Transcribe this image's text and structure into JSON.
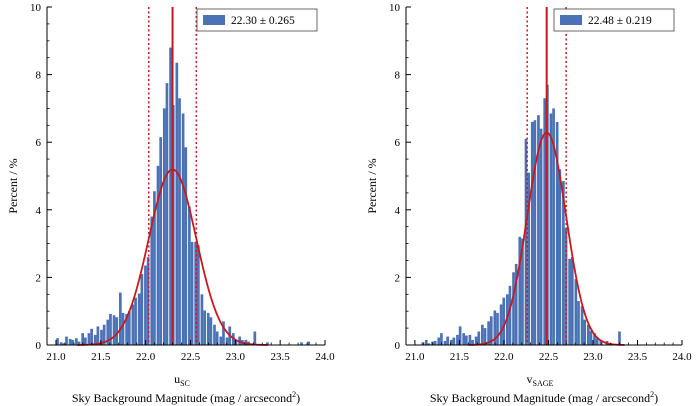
{
  "chart_data": [
    {
      "type": "bar",
      "panel": "left",
      "xlim": [
        20.9,
        24.0
      ],
      "ylim": [
        0,
        10
      ],
      "x_ticks": [
        21.0,
        21.5,
        22.0,
        22.5,
        23.0,
        23.5,
        24.0
      ],
      "x_tick_labels": [
        "21.0",
        "21.5",
        "22.0",
        "22.5",
        "23.0",
        "23.5",
        "24.0"
      ],
      "y_ticks": [
        0,
        2,
        4,
        6,
        8,
        10
      ],
      "y_tick_labels": [
        "0",
        "2",
        "4",
        "6",
        "8",
        "10"
      ],
      "ylabel": "Percent / %",
      "xlabel_var": "u",
      "xlabel_sub": "SC",
      "xlabel_bottom": "Sky Background Magnitude (mag / arcsecond",
      "xlabel_bottom_sup": "2",
      "xlabel_bottom_end": ")",
      "legend": {
        "label": "22.30 ± 0.265",
        "placement": "top-right"
      },
      "mean": 22.3,
      "sigma": 0.265,
      "bin_width": 0.0345,
      "bins": [
        [
          21.02,
          0.2
        ],
        [
          21.06,
          0.08
        ],
        [
          21.09,
          0.05
        ],
        [
          21.12,
          0.25
        ],
        [
          21.16,
          0.18
        ],
        [
          21.19,
          0.15
        ],
        [
          21.23,
          0.2
        ],
        [
          21.26,
          0.1
        ],
        [
          21.3,
          0.35
        ],
        [
          21.33,
          0.22
        ],
        [
          21.37,
          0.35
        ],
        [
          21.4,
          0.48
        ],
        [
          21.44,
          0.3
        ],
        [
          21.47,
          0.55
        ],
        [
          21.51,
          0.45
        ],
        [
          21.54,
          0.6
        ],
        [
          21.58,
          0.75
        ],
        [
          21.61,
          0.92
        ],
        [
          21.65,
          0.88
        ],
        [
          21.68,
          0.82
        ],
        [
          21.72,
          1.55
        ],
        [
          21.75,
          0.95
        ],
        [
          21.79,
          0.92
        ],
        [
          21.82,
          1.0
        ],
        [
          21.86,
          1.2
        ],
        [
          21.89,
          1.4
        ],
        [
          21.93,
          1.52
        ],
        [
          21.96,
          2.1
        ],
        [
          22.0,
          2.35
        ],
        [
          22.03,
          2.6
        ],
        [
          22.07,
          3.8
        ],
        [
          22.1,
          4.55
        ],
        [
          22.14,
          5.3
        ],
        [
          22.17,
          6.15
        ],
        [
          22.21,
          7.0
        ],
        [
          22.24,
          7.75
        ],
        [
          22.28,
          8.8
        ],
        [
          22.31,
          7.1
        ],
        [
          22.35,
          8.35
        ],
        [
          22.38,
          7.3
        ],
        [
          22.42,
          6.85
        ],
        [
          22.45,
          5.85
        ],
        [
          22.49,
          4.1
        ],
        [
          22.52,
          3.05
        ],
        [
          22.56,
          3.05
        ],
        [
          22.59,
          2.95
        ],
        [
          22.63,
          1.5
        ],
        [
          22.66,
          1.02
        ],
        [
          22.7,
          0.95
        ],
        [
          22.73,
          0.82
        ],
        [
          22.77,
          0.6
        ],
        [
          22.8,
          0.4
        ],
        [
          22.84,
          0.25
        ],
        [
          22.87,
          0.7
        ],
        [
          22.91,
          0.22
        ],
        [
          22.94,
          0.55
        ],
        [
          22.98,
          0.35
        ],
        [
          23.01,
          0.15
        ],
        [
          23.05,
          0.25
        ],
        [
          23.08,
          0.15
        ],
        [
          23.12,
          0.15
        ],
        [
          23.15,
          0.1
        ],
        [
          23.22,
          0.4
        ],
        [
          23.36,
          0.08
        ],
        [
          23.74,
          0.08
        ],
        [
          23.82,
          0.1
        ]
      ]
    },
    {
      "type": "bar",
      "panel": "right",
      "xlim": [
        20.9,
        24.0
      ],
      "ylim": [
        0,
        10
      ],
      "x_ticks": [
        21.0,
        21.5,
        22.0,
        22.5,
        23.0,
        23.5,
        24.0
      ],
      "x_tick_labels": [
        "21.0",
        "21.5",
        "22.0",
        "22.5",
        "23.0",
        "23.5",
        "24.0"
      ],
      "y_ticks": [
        0,
        2,
        4,
        6,
        8,
        10
      ],
      "y_tick_labels": [
        "0",
        "2",
        "4",
        "6",
        "8",
        "10"
      ],
      "ylabel": "Percent / %",
      "xlabel_var": "v",
      "xlabel_sub": "SAGE",
      "xlabel_bottom": "Sky Background Magnitude (mag / arcsecond",
      "xlabel_bottom_sup": "2",
      "xlabel_bottom_end": ")",
      "legend": {
        "label": "22.48 ± 0.219",
        "placement": "top-right"
      },
      "mean": 22.48,
      "sigma": 0.219,
      "bin_width": 0.0345,
      "bins": [
        [
          21.09,
          0.08
        ],
        [
          21.13,
          0.15
        ],
        [
          21.16,
          0.05
        ],
        [
          21.2,
          0.1
        ],
        [
          21.23,
          0.12
        ],
        [
          21.27,
          0.22
        ],
        [
          21.3,
          0.35
        ],
        [
          21.34,
          0.12
        ],
        [
          21.37,
          0.25
        ],
        [
          21.41,
          0.15
        ],
        [
          21.44,
          0.22
        ],
        [
          21.48,
          0.3
        ],
        [
          21.51,
          0.55
        ],
        [
          21.55,
          0.35
        ],
        [
          21.58,
          0.28
        ],
        [
          21.62,
          0.3
        ],
        [
          21.65,
          0.15
        ],
        [
          21.69,
          0.25
        ],
        [
          21.72,
          0.4
        ],
        [
          21.76,
          0.6
        ],
        [
          21.79,
          0.5
        ],
        [
          21.83,
          0.7
        ],
        [
          21.86,
          0.85
        ],
        [
          21.9,
          1.02
        ],
        [
          21.93,
          0.95
        ],
        [
          21.97,
          1.2
        ],
        [
          22.0,
          1.4
        ],
        [
          22.04,
          1.5
        ],
        [
          22.07,
          1.75
        ],
        [
          22.11,
          2.15
        ],
        [
          22.14,
          2.4
        ],
        [
          22.18,
          3.2
        ],
        [
          22.21,
          3.15
        ],
        [
          22.25,
          6.1
        ],
        [
          22.28,
          5.1
        ],
        [
          22.32,
          6.6
        ],
        [
          22.35,
          6.65
        ],
        [
          22.39,
          6.8
        ],
        [
          22.42,
          6.4
        ],
        [
          22.46,
          7.3
        ],
        [
          22.49,
          7.7
        ],
        [
          22.53,
          6.85
        ],
        [
          22.56,
          7.0
        ],
        [
          22.6,
          6.6
        ],
        [
          22.63,
          5.2
        ],
        [
          22.67,
          4.85
        ],
        [
          22.7,
          3.45
        ],
        [
          22.74,
          2.55
        ],
        [
          22.77,
          2.6
        ],
        [
          22.81,
          1.95
        ],
        [
          22.84,
          1.3
        ],
        [
          22.88,
          1.15
        ],
        [
          22.91,
          0.75
        ],
        [
          22.95,
          0.6
        ],
        [
          22.98,
          0.42
        ],
        [
          23.02,
          0.35
        ],
        [
          23.05,
          0.2
        ],
        [
          23.09,
          0.15
        ],
        [
          23.16,
          0.12
        ],
        [
          23.3,
          0.4
        ]
      ]
    }
  ]
}
